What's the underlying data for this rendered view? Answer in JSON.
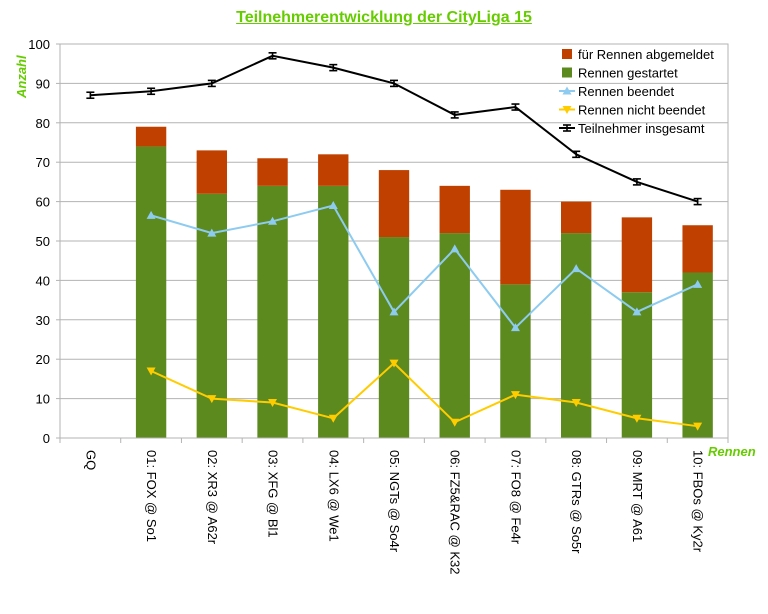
{
  "chart_data": {
    "type": "bar",
    "title": "Teilnehmerentwicklung der CityLiga 15",
    "xlabel": "Rennen",
    "ylabel": "Anzahl",
    "ylim": [
      0,
      100
    ],
    "ytick_step": 10,
    "grid": true,
    "legend_position": "top-right",
    "categories": [
      "GQ",
      "01: FOX @ So1",
      "02: XR3 @ A62r",
      "03: XFG @ Bl1",
      "04: LX6 @ We1",
      "05: NGTs @ So4r",
      "06: FZ5&RAC @ K32",
      "07: FO8 @ Fe4r",
      "08: GTRs @ So5r",
      "09: MRT @ A61",
      "10: FBOs @ Ky2r"
    ],
    "series": [
      {
        "name": "für Rennen abgemeldet",
        "kind": "bar-stacked",
        "color": "#c04000",
        "values": [
          null,
          5,
          11,
          7,
          8,
          17,
          12,
          24,
          8,
          19,
          12
        ]
      },
      {
        "name": "Rennen gestartet",
        "kind": "bar-stacked",
        "color": "#5c8a1e",
        "values": [
          null,
          74,
          62,
          64,
          64,
          51,
          52,
          39,
          52,
          37,
          42
        ]
      },
      {
        "name": "Rennen beendet",
        "kind": "line",
        "color": "#8ecbf0",
        "marker": "triangle-up",
        "values": [
          null,
          56.5,
          52,
          55,
          59,
          32,
          48,
          28,
          43,
          32,
          39
        ]
      },
      {
        "name": "Rennen nicht beendet",
        "kind": "line",
        "color": "#ffcc00",
        "marker": "triangle-down",
        "values": [
          null,
          17,
          10,
          9,
          5,
          19,
          4,
          11,
          9,
          5,
          3
        ]
      },
      {
        "name": "Teilnehmer insgesamt",
        "kind": "line",
        "color": "#000000",
        "marker": "cross",
        "values": [
          87,
          88,
          90,
          97,
          94,
          90,
          82,
          84,
          72,
          65,
          60
        ]
      }
    ]
  }
}
